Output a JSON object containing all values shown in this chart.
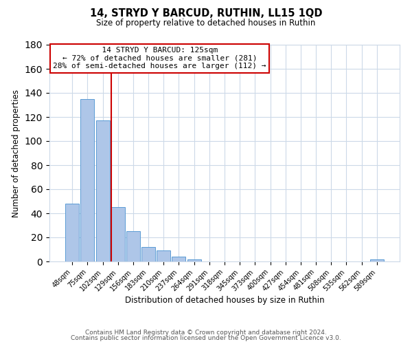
{
  "title": "14, STRYD Y BARCUD, RUTHIN, LL15 1QD",
  "subtitle": "Size of property relative to detached houses in Ruthin",
  "xlabel": "Distribution of detached houses by size in Ruthin",
  "ylabel": "Number of detached properties",
  "bar_labels": [
    "48sqm",
    "75sqm",
    "102sqm",
    "129sqm",
    "156sqm",
    "183sqm",
    "210sqm",
    "237sqm",
    "264sqm",
    "291sqm",
    "318sqm",
    "345sqm",
    "373sqm",
    "400sqm",
    "427sqm",
    "454sqm",
    "481sqm",
    "508sqm",
    "535sqm",
    "562sqm",
    "589sqm"
  ],
  "bar_values": [
    48,
    135,
    117,
    45,
    25,
    12,
    9,
    4,
    2,
    0,
    0,
    0,
    0,
    0,
    0,
    0,
    0,
    0,
    0,
    0,
    2
  ],
  "bar_color": "#aec6e8",
  "bar_edge_color": "#5b9bd5",
  "vline_x_index": 3,
  "vline_color": "#cc0000",
  "ylim": [
    0,
    180
  ],
  "yticks": [
    0,
    20,
    40,
    60,
    80,
    100,
    120,
    140,
    160,
    180
  ],
  "annotation_title": "14 STRYD Y BARCUD: 125sqm",
  "annotation_line1": "← 72% of detached houses are smaller (281)",
  "annotation_line2": "28% of semi-detached houses are larger (112) →",
  "annotation_box_color": "#ffffff",
  "annotation_box_edge": "#cc0000",
  "footer_line1": "Contains HM Land Registry data © Crown copyright and database right 2024.",
  "footer_line2": "Contains public sector information licensed under the Open Government Licence v3.0.",
  "background_color": "#ffffff",
  "grid_color": "#ccd9e8"
}
